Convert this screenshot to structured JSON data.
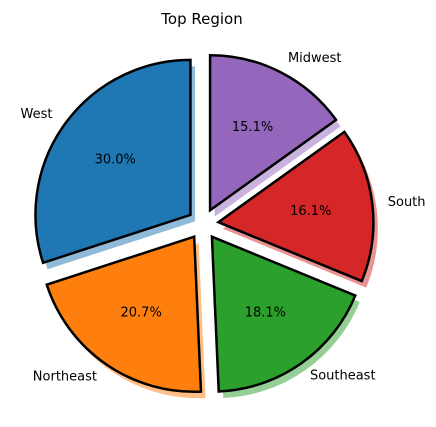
{
  "chart_data": {
    "type": "pie",
    "title": "Top Region",
    "categories": [
      "West",
      "Northeast",
      "Southeast",
      "South",
      "Midwest"
    ],
    "values": [
      30.0,
      20.7,
      18.1,
      16.1,
      15.1
    ],
    "value_labels": [
      "30.0%",
      "20.7%",
      "18.1%",
      "16.1%",
      "15.1%"
    ],
    "colors": [
      "#1f77b4",
      "#ff7f0e",
      "#2ca02c",
      "#d62728",
      "#9467bd"
    ],
    "edge_color": "#000000",
    "exploded": true,
    "shadow": true,
    "start_angle_deg": 90,
    "direction": "counterclockwise",
    "legend": "none"
  }
}
